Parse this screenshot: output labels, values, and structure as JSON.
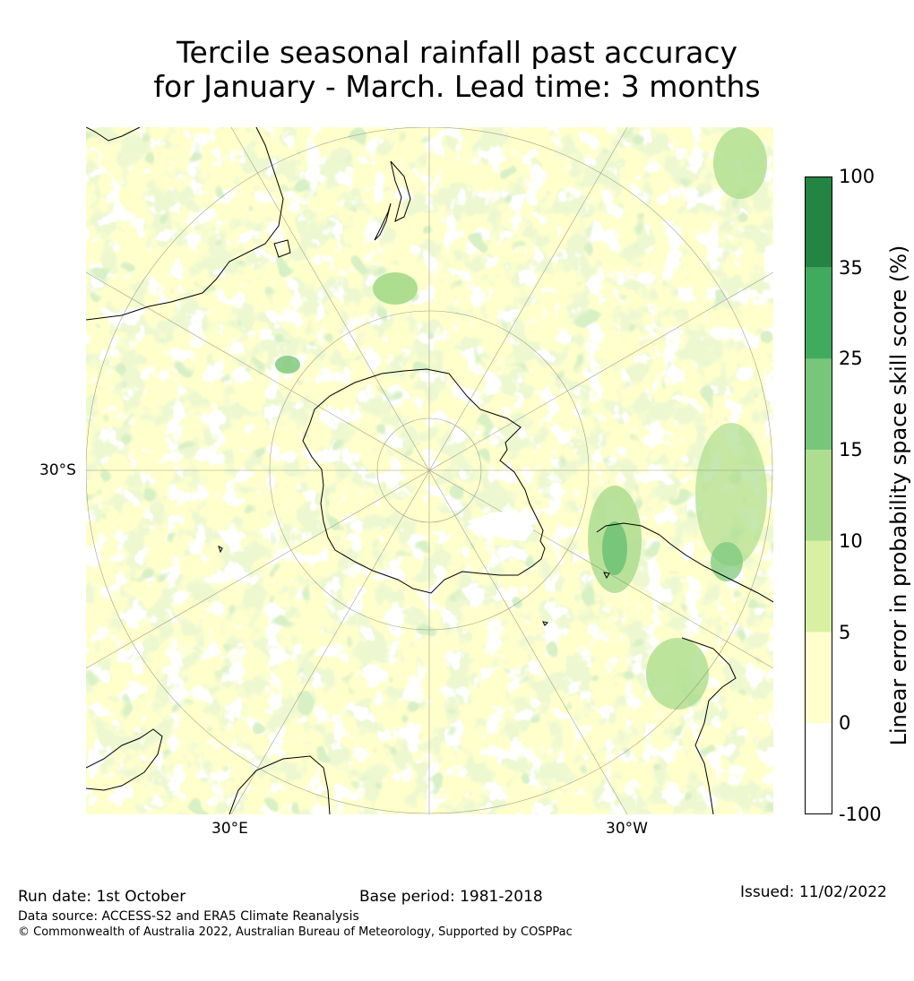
{
  "title_line1": "Tercile seasonal rainfall past accuracy",
  "title_line2": "for January - March. Lead time: 3 months",
  "map": {
    "tick_left": "30°S",
    "tick_bottom_left": "30°E",
    "tick_bottom_right": "30°W",
    "colors": {
      "land_line": "#000000",
      "grid_line": "#8a8a7a",
      "yellow": "#ffffcc",
      "light_green": "#d9f0a3",
      "mid_green": "#addd8e",
      "green": "#78c679",
      "dark_green": "#41ab5d"
    }
  },
  "colorbar": {
    "title": "Linear error in probability space skill score (%)",
    "labels": [
      "100",
      "35",
      "25",
      "15",
      "10",
      "5",
      "0",
      "-100"
    ],
    "bins": [
      {
        "range": "35 to 100",
        "color": "#238443"
      },
      {
        "range": "25 to 35",
        "color": "#41ab5d"
      },
      {
        "range": "15 to 25",
        "color": "#78c679"
      },
      {
        "range": "10 to 15",
        "color": "#addd8e"
      },
      {
        "range": "5 to 10",
        "color": "#d9f0a3"
      },
      {
        "range": "0 to 5",
        "color": "#ffffcc"
      },
      {
        "range": "-100 to 0",
        "color": "#ffffff"
      }
    ]
  },
  "footer": {
    "run_date": "Run date: 1st October",
    "base_period": "Base period: 1981-2018",
    "issued": "Issued: 11/02/2022",
    "data_source": "Data source: ACCESS-S2 and ERA5 Climate Reanalysis",
    "copyright": "© Commonwealth of Australia 2022, Australian Bureau of Meteorology, Supported by COSPPac"
  }
}
